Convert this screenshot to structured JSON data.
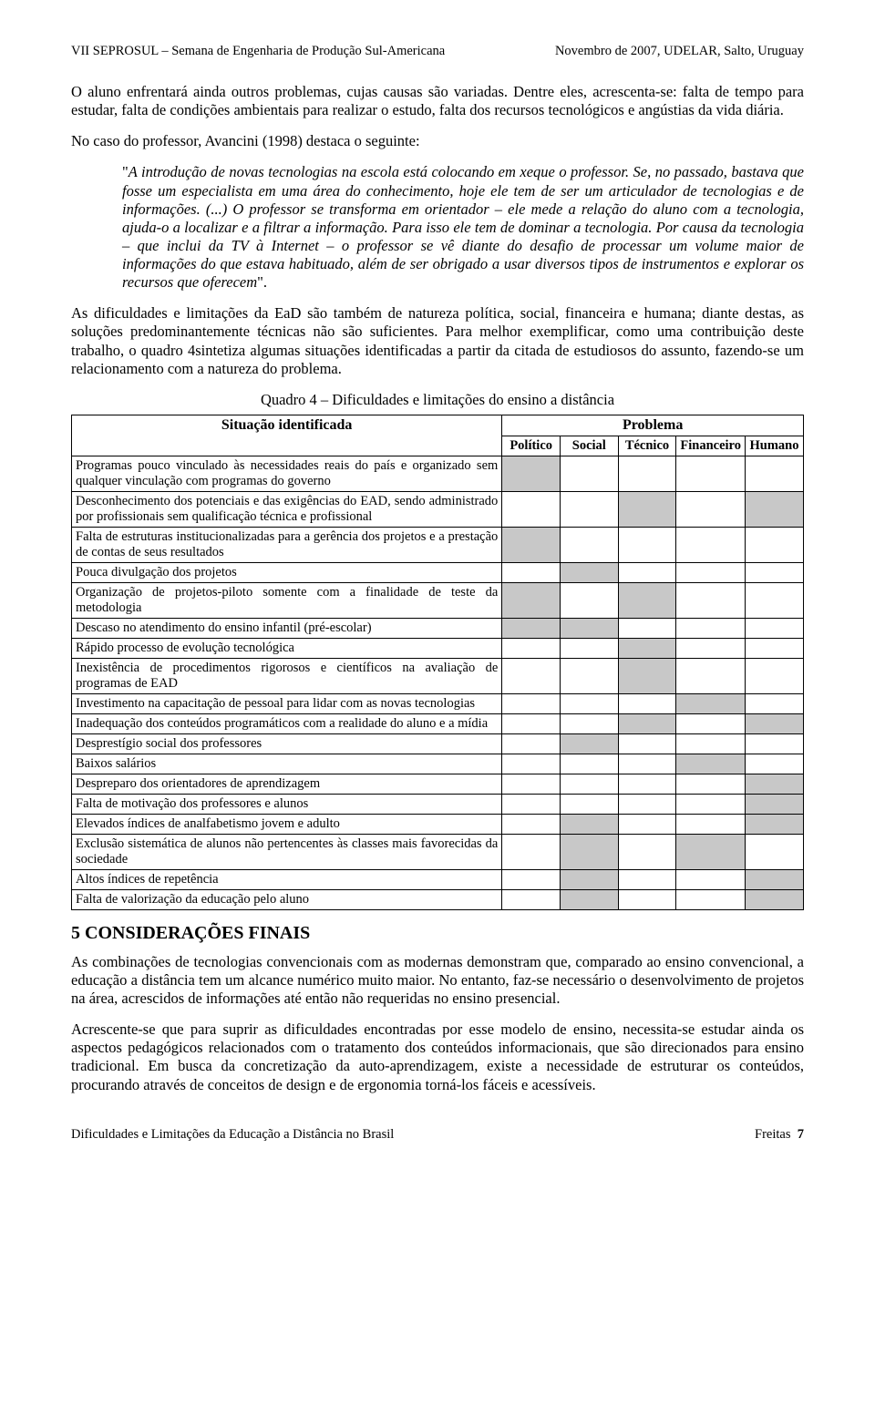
{
  "header": {
    "left": "VII SEPROSUL – Semana de Engenharia de Produção Sul-Americana",
    "right": "Novembro de 2007, UDELAR, Salto, Uruguay"
  },
  "p1": "O aluno enfrentará ainda outros problemas, cujas causas são variadas. Dentre eles, acrescenta-se: falta de tempo para estudar, falta de condições ambientais para realizar o estudo, falta dos recursos tecnológicos e angústias da vida diária.",
  "p2": "No caso do professor, Avancini (1998) destaca o seguinte:",
  "quote_open": "\"",
  "quote_body": "A introdução de novas tecnologias na escola está colocando em xeque o professor. Se, no passado, bastava que fosse um especialista em uma área do conhecimento, hoje ele tem de ser um articulador de tecnologias e de informações. (...) O professor se transforma em orientador – ele mede a relação do aluno com a tecnologia, ajuda-o a localizar e a filtrar a informação. Para isso ele tem de dominar a tecnologia. Por causa da tecnologia – que inclui da TV à Internet – o professor se vê diante do desafio de processar um volume maior de informações do que estava habituado, além de ser obrigado a usar diversos tipos de instrumentos e explorar os recursos que oferecem",
  "quote_close": "\".",
  "p3": "As dificuldades e limitações da EaD são também de natureza política, social, financeira e humana; diante destas, as soluções predominantemente técnicas não são suficientes. Para melhor exemplificar, como uma contribuição deste trabalho, o quadro 4sintetiza algumas situações identificadas a partir da citada de estudiosos do assunto, fazendo-se um relacionamento com a natureza do problema.",
  "caption4": "Quadro 4 – Dificuldades e limitações do ensino a distância",
  "table4": {
    "head_sit": "Situação identificada",
    "head_prob": "Problema",
    "cols": [
      "Político",
      "Social",
      "Técnico",
      "Financeiro",
      "Humano"
    ],
    "rows": [
      {
        "label": "Programas pouco vinculado às necessidades reais do país e organizado sem qualquer vinculação com programas do governo",
        "marks": [
          true,
          false,
          false,
          false,
          false
        ]
      },
      {
        "label": "Desconhecimento dos potenciais e das exigências do EAD, sendo administrado por profissionais sem qualificação técnica e profissional",
        "marks": [
          false,
          false,
          true,
          false,
          true
        ]
      },
      {
        "label": "Falta de estruturas institucionalizadas para a gerência dos projetos e a prestação de contas de seus resultados",
        "marks": [
          true,
          false,
          false,
          false,
          false
        ]
      },
      {
        "label": "Pouca divulgação dos projetos",
        "marks": [
          false,
          true,
          false,
          false,
          false
        ]
      },
      {
        "label": "Organização de projetos-piloto somente com a finalidade de teste da metodologia",
        "marks": [
          true,
          false,
          true,
          false,
          false
        ]
      },
      {
        "label": "Descaso no atendimento do ensino infantil (pré-escolar)",
        "marks": [
          true,
          true,
          false,
          false,
          false
        ]
      },
      {
        "label": "Rápido processo de evolução tecnológica",
        "marks": [
          false,
          false,
          true,
          false,
          false
        ]
      },
      {
        "label": "Inexistência de procedimentos rigorosos e científicos na avaliação de programas de EAD",
        "marks": [
          false,
          false,
          true,
          false,
          false
        ]
      },
      {
        "label": "Investimento na capacitação de pessoal para lidar com as novas tecnologias",
        "marks": [
          false,
          false,
          false,
          true,
          false
        ]
      },
      {
        "label": "Inadequação dos conteúdos programáticos com a realidade do aluno e a mídia",
        "marks": [
          false,
          false,
          true,
          false,
          true
        ]
      },
      {
        "label": "Desprestígio social dos professores",
        "marks": [
          false,
          true,
          false,
          false,
          false
        ]
      },
      {
        "label": "Baixos salários",
        "marks": [
          false,
          false,
          false,
          true,
          false
        ]
      },
      {
        "label": "Despreparo dos orientadores de aprendizagem",
        "marks": [
          false,
          false,
          false,
          false,
          true
        ]
      },
      {
        "label": "Falta de motivação dos professores e alunos",
        "marks": [
          false,
          false,
          false,
          false,
          true
        ]
      },
      {
        "label": "Elevados índices de analfabetismo jovem e adulto",
        "marks": [
          false,
          true,
          false,
          false,
          true
        ]
      },
      {
        "label": "Exclusão sistemática de alunos não pertencentes às classes mais favorecidas da sociedade",
        "marks": [
          false,
          true,
          false,
          true,
          false
        ]
      },
      {
        "label": "Altos índices de repetência",
        "marks": [
          false,
          true,
          false,
          false,
          true
        ]
      },
      {
        "label": "Falta de valorização da educação pelo aluno",
        "marks": [
          false,
          true,
          false,
          false,
          true
        ]
      }
    ],
    "cell_fill": "#c8c8c8",
    "border_color": "#000000"
  },
  "section5": "5  CONSIDERAÇÕES FINAIS",
  "p4": "As combinações de tecnologias convencionais com as modernas demonstram que, comparado ao ensino convencional, a educação a distância tem um alcance numérico muito maior. No entanto, faz-se necessário o desenvolvimento de projetos na área, acrescidos de informações até então não requeridas no ensino presencial.",
  "p5": "Acrescente-se que para suprir as dificuldades encontradas por esse modelo de ensino, necessita-se estudar ainda os aspectos pedagógicos relacionados com o tratamento dos conteúdos informacionais, que são direcionados para ensino tradicional. Em busca da concretização da auto-aprendizagem, existe a necessidade de estruturar os conteúdos, procurando através de conceitos de design e de ergonomia torná-los fáceis e acessíveis.",
  "footer": {
    "left": "Dificuldades e Limitações da Educação a Distância no Brasil",
    "right_name": "Freitas",
    "right_page": "7"
  }
}
